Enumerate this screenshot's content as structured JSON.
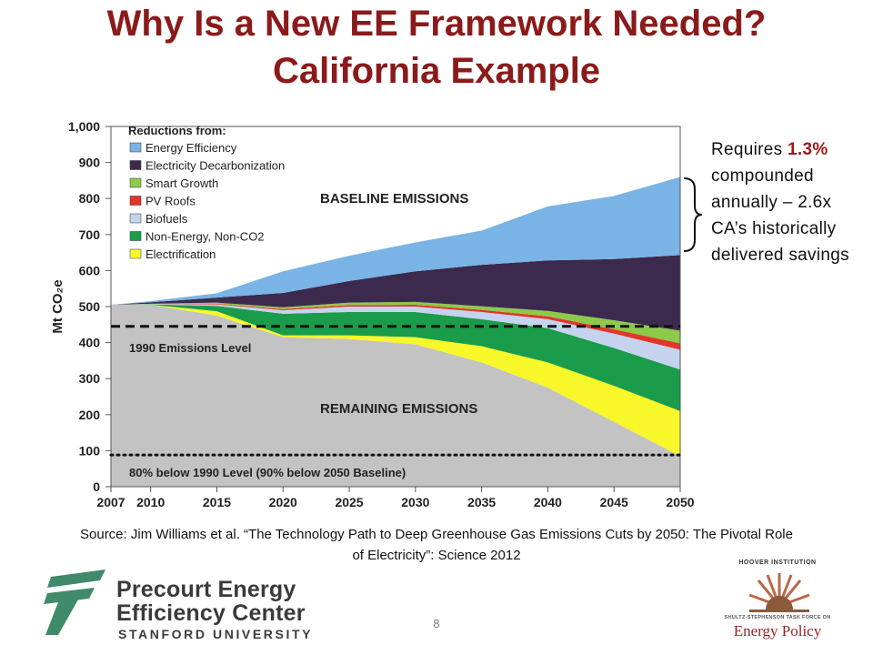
{
  "slide": {
    "title_line1": "Why Is a New EE Framework Needed?",
    "title_line2": "California Example",
    "annotation_pre": "Requires ",
    "annotation_highlight": "1.3%",
    "annotation_post": " compounded annually – 2.6x CA’s historically delivered savings",
    "source": "Source: Jim Williams et al. “The Technology Path to Deep Greenhouse Gas Emissions Cuts by 2050: The Pivotal Role of Electricity”: Science 2012",
    "page_number": "8"
  },
  "logos": {
    "precourt_line1": "Precourt Energy",
    "precourt_line2": "Efficiency Center",
    "precourt_line3": "STANFORD UNIVERSITY",
    "hoover_top": "HOOVER INSTITUTION",
    "hoover_mid": "SHULTZ-STEPHENSON TASK FORCE ON",
    "hoover_bottom": "Energy Policy"
  },
  "chart_data": {
    "type": "area",
    "ylabel": "Mt CO₂e",
    "ylim": [
      0,
      1000
    ],
    "xlim": [
      2007,
      2050
    ],
    "yticks": [
      0,
      100,
      200,
      300,
      400,
      500,
      600,
      700,
      800,
      900,
      1000
    ],
    "ytick_labels": [
      "0",
      "100",
      "200",
      "300",
      "400",
      "500",
      "600",
      "700",
      "800",
      "900",
      "1,000"
    ],
    "xticks": [
      2007,
      2010,
      2015,
      2020,
      2025,
      2030,
      2035,
      2040,
      2045,
      2050
    ],
    "legend_title": "Reductions from:",
    "legend_position": "top-left",
    "x": [
      2007,
      2010,
      2015,
      2020,
      2025,
      2030,
      2035,
      2040,
      2045,
      2050
    ],
    "remaining": [
      505,
      505,
      475,
      415,
      410,
      395,
      345,
      275,
      180,
      85
    ],
    "bands": [
      {
        "name": "Electrification",
        "color": "#f7f72a",
        "values": [
          0,
          0,
          12,
          5,
          10,
          20,
          45,
          70,
          100,
          125
        ]
      },
      {
        "name": "Non-Energy, Non-CO2",
        "color": "#1a9c4a",
        "values": [
          0,
          1,
          15,
          60,
          65,
          70,
          75,
          95,
          105,
          115
        ]
      },
      {
        "name": "Biofuels",
        "color": "#c5d3ee",
        "values": [
          0,
          1,
          4,
          10,
          15,
          15,
          20,
          25,
          40,
          55
        ]
      },
      {
        "name": "PV Roofs",
        "color": "#e0372a",
        "values": [
          0,
          0,
          2,
          3,
          4,
          5,
          6,
          8,
          12,
          18
        ]
      },
      {
        "name": "Smart Growth",
        "color": "#8dc94a",
        "values": [
          0,
          1,
          3,
          5,
          7,
          8,
          10,
          15,
          25,
          35
        ]
      },
      {
        "name": "Electricity Decarbonization",
        "color": "#3b2a4d",
        "values": [
          0,
          4,
          14,
          40,
          60,
          85,
          115,
          140,
          170,
          210
        ]
      },
      {
        "name": "Energy Efficiency",
        "color": "#7ab3e6",
        "values": [
          0,
          3,
          12,
          60,
          70,
          80,
          95,
          150,
          175,
          217
        ]
      }
    ],
    "legend_items": [
      {
        "name": "Energy Efficiency",
        "color": "#7ab3e6"
      },
      {
        "name": "Electricity Decarbonization",
        "color": "#3b2a4d"
      },
      {
        "name": "Smart Growth",
        "color": "#8dc94a"
      },
      {
        "name": "PV Roofs",
        "color": "#e0372a"
      },
      {
        "name": "Biofuels",
        "color": "#c5d3ee"
      },
      {
        "name": "Non-Energy, Non-CO2",
        "color": "#1a9c4a"
      },
      {
        "name": "Electrification",
        "color": "#f7f72a"
      }
    ],
    "remaining_color": "#c3c3c3",
    "reference_lines": [
      {
        "label": "1990 Emissions Level",
        "value": 445,
        "style": "dashed"
      },
      {
        "label": "80% below 1990 Level (90% below 2050 Baseline)",
        "value": 88,
        "style": "dotted"
      }
    ],
    "annotations": {
      "baseline": "BASELINE EMISSIONS",
      "remaining": "REMAINING EMISSIONS"
    }
  }
}
